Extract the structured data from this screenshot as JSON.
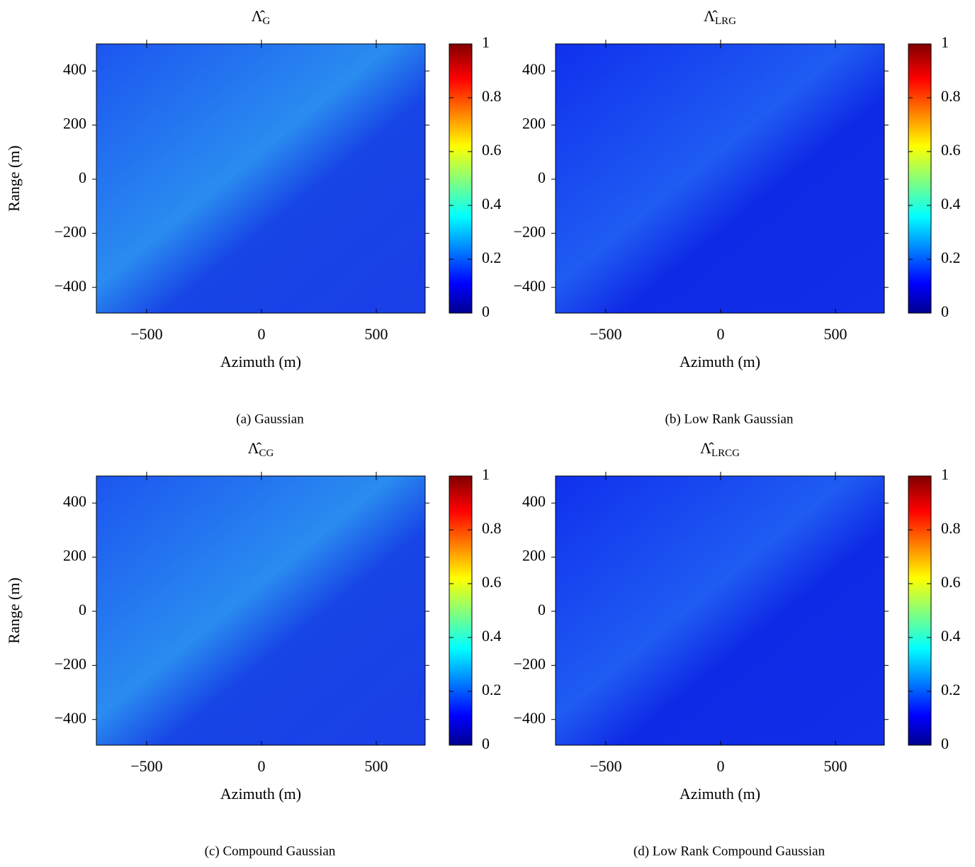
{
  "chart_data": [
    {
      "type": "heatmap",
      "title": "Λ̂",
      "title_subscript": "G",
      "xlabel": "Azimuth (m)",
      "ylabel": "Range (m)",
      "caption": "(a) Gaussian",
      "xlim": [
        -719,
        713
      ],
      "ylim": [
        -495,
        500
      ],
      "xticks": [
        {
          "value": -500,
          "label": "−500"
        },
        0,
        500
      ],
      "yticks": [
        {
          "value": -400,
          "label": "−400"
        },
        {
          "value": -200,
          "label": "−200"
        },
        0,
        200,
        400
      ],
      "clim": [
        0,
        1
      ],
      "cticks": [
        0,
        0.2,
        0.4,
        0.6,
        0.8,
        1
      ],
      "colormap": "jet"
    },
    {
      "type": "heatmap",
      "title": "Λ̂",
      "title_subscript": "LRG",
      "xlabel": "Azimuth (m)",
      "caption": "(b) Low Rank Gaussian",
      "xlim": [
        -719,
        713
      ],
      "ylim": [
        -495,
        500
      ],
      "xticks": [
        {
          "value": -500,
          "label": "−500"
        },
        0,
        500
      ],
      "yticks": [
        {
          "value": -400,
          "label": "−400"
        },
        {
          "value": -200,
          "label": "−200"
        },
        0,
        200,
        400
      ],
      "clim": [
        0,
        1
      ],
      "cticks": [
        0,
        0.2,
        0.4,
        0.6,
        0.8,
        1
      ],
      "colormap": "jet"
    },
    {
      "type": "heatmap",
      "title": "Λ̂",
      "title_subscript": "CG",
      "xlabel": "Azimuth (m)",
      "ylabel": "Range (m)",
      "caption": "(c) Compound Gaussian",
      "xlim": [
        -719,
        713
      ],
      "ylim": [
        -495,
        500
      ],
      "xticks": [
        {
          "value": -500,
          "label": "−500"
        },
        0,
        500
      ],
      "yticks": [
        {
          "value": -400,
          "label": "−400"
        },
        {
          "value": -200,
          "label": "−200"
        },
        0,
        200,
        400
      ],
      "clim": [
        0,
        1
      ],
      "cticks": [
        0,
        0.2,
        0.4,
        0.6,
        0.8,
        1
      ],
      "colormap": "jet"
    },
    {
      "type": "heatmap",
      "title": "Λ̂",
      "title_subscript": "LRCG",
      "xlabel": "Azimuth (m)",
      "caption": "(d) Low Rank Compound Gaussian",
      "xlim": [
        -719,
        713
      ],
      "ylim": [
        -495,
        500
      ],
      "xticks": [
        {
          "value": -500,
          "label": "−500"
        },
        0,
        500
      ],
      "yticks": [
        {
          "value": -400,
          "label": "−400"
        },
        {
          "value": -200,
          "label": "−200"
        },
        0,
        200,
        400
      ],
      "clim": [
        0,
        1
      ],
      "cticks": [
        0,
        0.2,
        0.4,
        0.6,
        0.8,
        1
      ],
      "colormap": "jet"
    }
  ]
}
